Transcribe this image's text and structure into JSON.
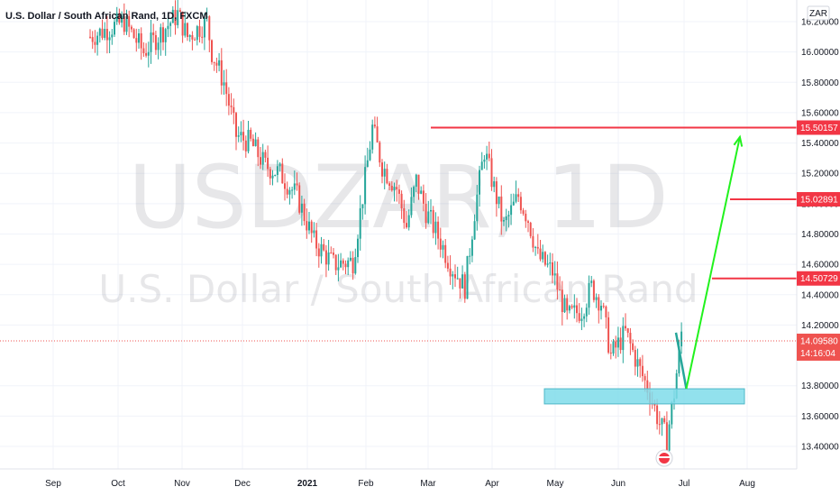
{
  "header": {
    "title": "U.S. Dollar / South African Rand, 1D, FXCM",
    "currency": "ZAR"
  },
  "watermark": {
    "symbol": "USDZAR, 1D",
    "name": "U.S. Dollar / South African Rand"
  },
  "chart_data": {
    "type": "candlestick",
    "symbol": "USDZAR",
    "interval": "1D",
    "source": "FXCM",
    "y_ticks": [
      "16.20000",
      "16.00000",
      "15.80000",
      "15.60000",
      "15.40000",
      "15.20000",
      "15.00000",
      "14.80000",
      "14.60000",
      "14.40000",
      "14.20000",
      "13.80000",
      "13.60000",
      "13.40000"
    ],
    "x_ticks": [
      {
        "label": "Sep",
        "bold": false
      },
      {
        "label": "Oct",
        "bold": false
      },
      {
        "label": "Nov",
        "bold": false
      },
      {
        "label": "Dec",
        "bold": false
      },
      {
        "label": "2021",
        "bold": true
      },
      {
        "label": "Feb",
        "bold": false
      },
      {
        "label": "Mar",
        "bold": false
      },
      {
        "label": "Apr",
        "bold": false
      },
      {
        "label": "May",
        "bold": false
      },
      {
        "label": "Jun",
        "bold": false
      },
      {
        "label": "Jul",
        "bold": false
      },
      {
        "label": "Aug",
        "bold": false
      }
    ],
    "current_price": {
      "value": "14.09580",
      "countdown": "14:16:04"
    },
    "levels": [
      {
        "label": "15.50157",
        "value": 15.50157,
        "color": "#f23645"
      },
      {
        "label": "15.02891",
        "value": 15.02891,
        "color": "#f23645"
      },
      {
        "label": "14.50729",
        "value": 14.50729,
        "color": "#f23645"
      }
    ],
    "support_zone": {
      "from": 13.68,
      "to": 13.78,
      "color": "#7fdcea"
    },
    "projection": [
      {
        "date_index": 240,
        "price": 14.15
      },
      {
        "date_index": 245,
        "price": 13.78
      },
      {
        "date_index": 267,
        "price": 15.44
      }
    ],
    "projection_color": "#21f21d",
    "pre_projection_color": "#26a69a",
    "colors": {
      "up": "#26a69a",
      "down": "#ef5350",
      "grid": "#f0f3fa"
    },
    "series_path": [
      {
        "i": 0,
        "p": 16.1
      },
      {
        "i": 14,
        "p": 16.2
      },
      {
        "i": 22,
        "p": 16.0
      },
      {
        "i": 36,
        "p": 16.25
      },
      {
        "i": 40,
        "p": 16.1
      },
      {
        "i": 48,
        "p": 16.2
      },
      {
        "i": 50,
        "p": 16.0
      },
      {
        "i": 55,
        "p": 15.8
      },
      {
        "i": 60,
        "p": 15.45
      },
      {
        "i": 66,
        "p": 15.4
      },
      {
        "i": 72,
        "p": 15.25
      },
      {
        "i": 78,
        "p": 15.2
      },
      {
        "i": 85,
        "p": 15.05
      },
      {
        "i": 92,
        "p": 14.75
      },
      {
        "i": 100,
        "p": 14.6
      },
      {
        "i": 108,
        "p": 14.62
      },
      {
        "i": 112,
        "p": 15.05
      },
      {
        "i": 116,
        "p": 15.5
      },
      {
        "i": 120,
        "p": 15.25
      },
      {
        "i": 126,
        "p": 15.1
      },
      {
        "i": 130,
        "p": 14.85
      },
      {
        "i": 134,
        "p": 15.15
      },
      {
        "i": 138,
        "p": 14.95
      },
      {
        "i": 144,
        "p": 14.75
      },
      {
        "i": 148,
        "p": 14.6
      },
      {
        "i": 154,
        "p": 14.45
      },
      {
        "i": 158,
        "p": 14.95
      },
      {
        "i": 162,
        "p": 15.35
      },
      {
        "i": 166,
        "p": 15.1
      },
      {
        "i": 170,
        "p": 14.85
      },
      {
        "i": 176,
        "p": 15.05
      },
      {
        "i": 180,
        "p": 14.9
      },
      {
        "i": 184,
        "p": 14.65
      },
      {
        "i": 190,
        "p": 14.55
      },
      {
        "i": 196,
        "p": 14.25
      },
      {
        "i": 202,
        "p": 14.3
      },
      {
        "i": 206,
        "p": 14.45
      },
      {
        "i": 210,
        "p": 14.35
      },
      {
        "i": 214,
        "p": 14.0
      },
      {
        "i": 220,
        "p": 14.15
      },
      {
        "i": 226,
        "p": 13.9
      },
      {
        "i": 230,
        "p": 13.75
      },
      {
        "i": 234,
        "p": 13.55
      },
      {
        "i": 237,
        "p": 13.45
      },
      {
        "i": 240,
        "p": 13.75
      },
      {
        "i": 243,
        "p": 14.15
      }
    ]
  }
}
